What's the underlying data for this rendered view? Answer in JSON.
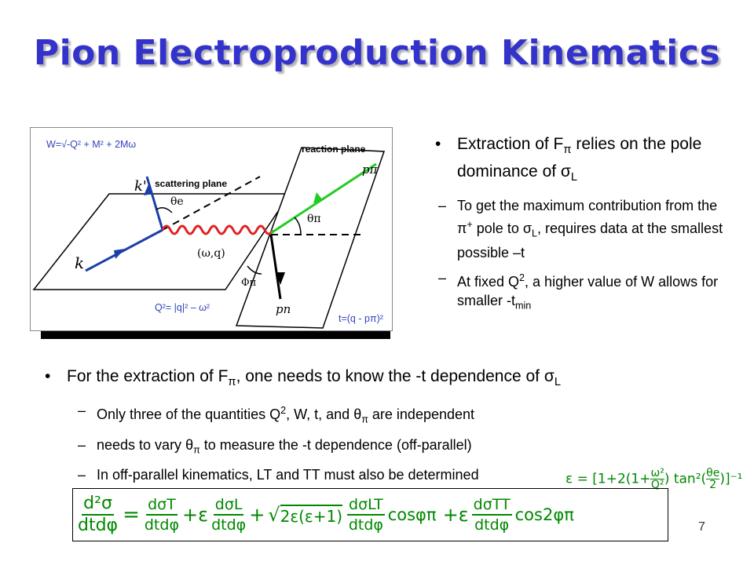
{
  "title": "Pion Electroproduction Kinematics",
  "diagram": {
    "w_formula": "W=√-Q² + M² + 2Mω",
    "reaction_plane": "reaction plane",
    "scattering_plane": "scattering plane",
    "q2_formula": "Q²= |q|² – ω²",
    "t_formula": "t=(q - pπ)²",
    "k_prime": "k'",
    "k": "k",
    "theta_e": "θe",
    "omega_q": "(ω,q)",
    "phi_pi": "Φπ",
    "theta_pi": "θπ",
    "p_pi": "pπ",
    "p_n": "pn"
  },
  "right_bullets": {
    "b1_a": "Extraction of F",
    "b1_sub": "π",
    "b1_b": " relies on the pole dominance of σ",
    "b1_sub2": "L",
    "d1_a": "To get the maximum contribution from the π",
    "d1_sup": "+",
    "d1_b": " pole to σ",
    "d1_sub": "L",
    "d1_c": ", requires data at the smallest possible –t",
    "d2_a": "At fixed Q",
    "d2_sup": "2",
    "d2_b": ", a higher value of W allows for smaller -t",
    "d2_sub": "min"
  },
  "lower_bullets": {
    "b1_a": "For the extraction of F",
    "b1_sub": "π",
    "b1_b": ", one needs to know the -t dependence of σ",
    "b1_sub2": "L",
    "d1_a": "Only three of the quantities Q",
    "d1_sup": "2",
    "d1_b": ", W, t, and θ",
    "d1_sub": "π",
    "d1_c": " are independent",
    "d2_a": "needs to vary θ",
    "d2_sub": "π",
    "d2_b": " to measure the -t dependence (off-parallel)",
    "d3": "In off-parallel kinematics, LT and TT must also be determined"
  },
  "epsilon_formula": {
    "eps": "ε",
    "eq": "=",
    "lb": "[1+2(1+",
    "w2": "ω²",
    "q2": "Q²",
    "tan": ") tan²(",
    "th": "θe",
    "two": "2",
    "rb": ")]⁻¹"
  },
  "cross_section": {
    "lhs_num": "d²σ",
    "lhs_den": "dtdφ",
    "eq": "=",
    "t1_num": "dσT",
    "t1_den": "dtdφ",
    "plus_eps": "+ε",
    "t2_num": "dσL",
    "t2_den": "dtdφ",
    "plus_sqrt": "+",
    "sqrt_body": "2ε(ε+1)",
    "t3_num": "dσLT",
    "t3_den": "dtdφ",
    "cos1": "cosφπ",
    "plus_eps2": "+ε",
    "t4_num": "dσTT",
    "t4_den": "dtdφ",
    "cos2": "cos2φπ"
  },
  "page_number": "7",
  "colors": {
    "title": "#3333cc",
    "electron": "#1a3fa8",
    "pion": "#22cc22",
    "photon": "#e02020",
    "formula_green": "#008800"
  }
}
